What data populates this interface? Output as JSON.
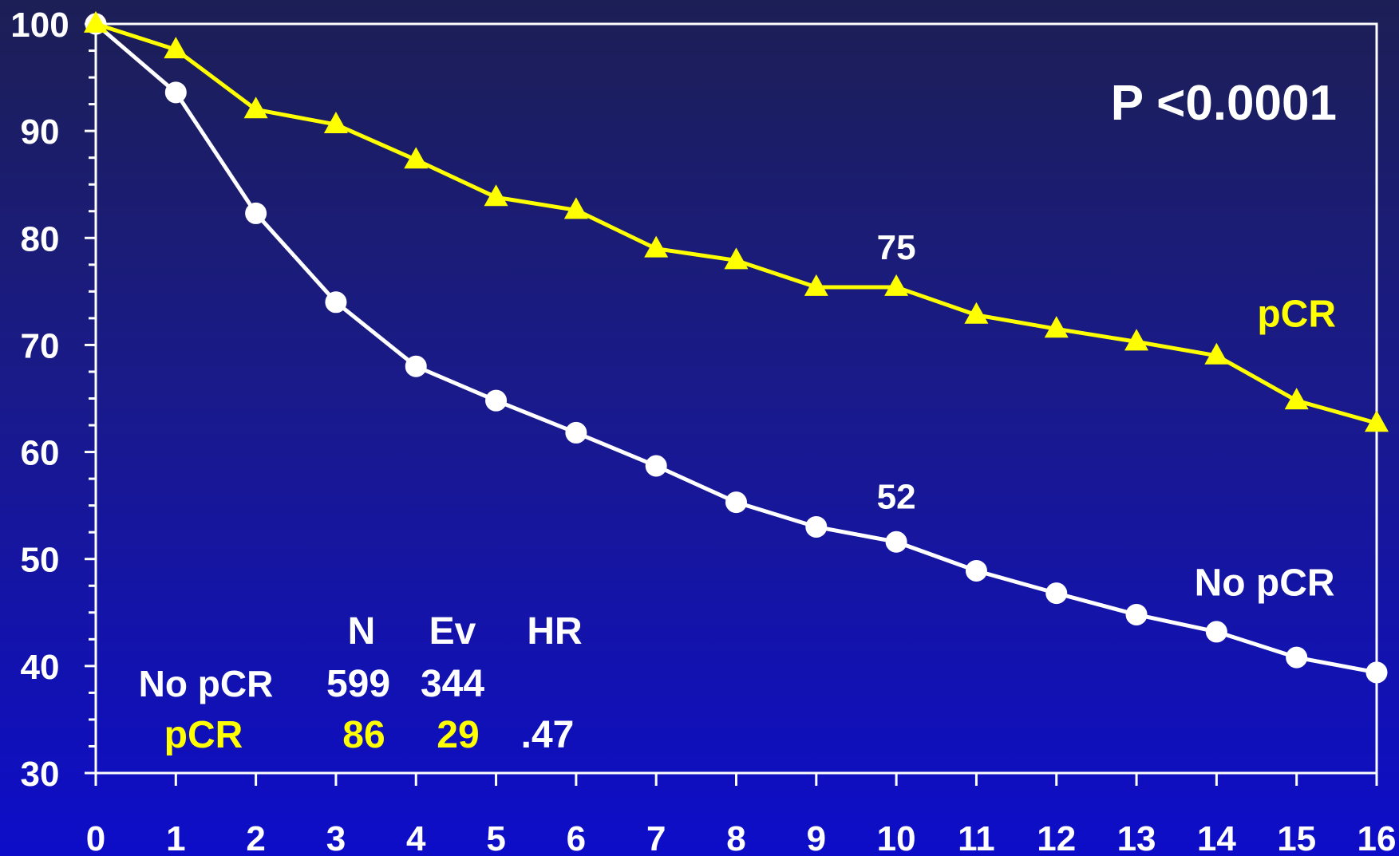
{
  "chart_data": {
    "type": "line",
    "x": [
      0,
      1,
      2,
      3,
      4,
      5,
      6,
      7,
      8,
      9,
      10,
      11,
      12,
      13,
      14,
      15,
      16
    ],
    "xlim": [
      0,
      16
    ],
    "ylim": [
      30,
      100
    ],
    "y_ticks": [
      30,
      40,
      50,
      60,
      70,
      80,
      90,
      100
    ],
    "grid": false,
    "series": [
      {
        "name": "pCR",
        "color": "#ffff00",
        "marker": "triangle",
        "values": [
          100,
          97.6,
          92,
          90.6,
          87.3,
          83.8,
          82.6,
          79,
          77.9,
          75.4,
          75.4,
          72.8,
          71.5,
          70.3,
          69,
          64.8,
          62.7
        ]
      },
      {
        "name": "No pCR",
        "color": "#ffffff",
        "marker": "circle",
        "values": [
          100,
          93.6,
          82.3,
          74,
          68,
          64.8,
          61.8,
          58.7,
          55.3,
          53,
          51.6,
          48.9,
          46.8,
          44.8,
          43.2,
          40.8,
          39.4
        ]
      }
    ],
    "annotations": {
      "p_value": "P <0.0001",
      "label_pcr_end": "75",
      "label_nopcr_end": "52",
      "label_pcr_end_x": 10,
      "label_pcr_end_y": 78,
      "label_nopcr_end_x": 10,
      "label_nopcr_end_y": 54.7
    },
    "series_labels": {
      "pcr": {
        "text": "pCR",
        "x": 15,
        "y": 71.7
      },
      "nopcr": {
        "text": "No pCR",
        "x": 14.6,
        "y": 46.6
      }
    },
    "summary_table": {
      "headers": [
        "N",
        "Ev",
        "HR"
      ],
      "rows": [
        {
          "label": "No pCR",
          "color": "#ffffff",
          "n": "599",
          "ev": "344",
          "hr": ""
        },
        {
          "label": "pCR",
          "color": "#ffff00",
          "n": "86",
          "ev": "29",
          "hr": ".47"
        }
      ]
    }
  }
}
